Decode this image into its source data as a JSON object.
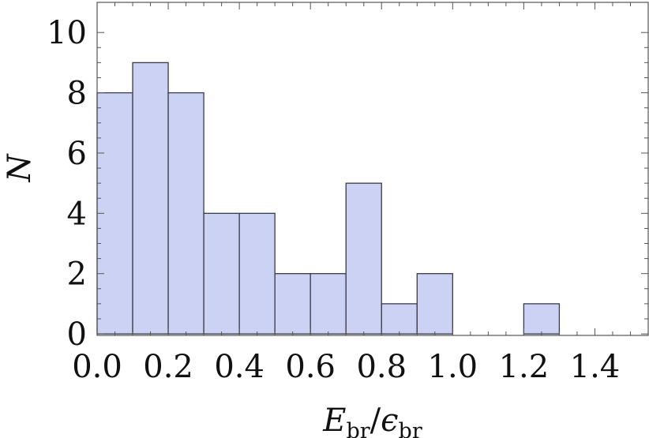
{
  "chart_data": {
    "type": "bar",
    "subtype": "histogram",
    "bin_edges": [
      0.0,
      0.1,
      0.2,
      0.3,
      0.4,
      0.5,
      0.6,
      0.7,
      0.8,
      0.9,
      1.0,
      1.1,
      1.2,
      1.3
    ],
    "counts": [
      8,
      9,
      8,
      4,
      4,
      2,
      2,
      5,
      1,
      2,
      0,
      0,
      1
    ],
    "xlim": [
      0.0,
      1.55
    ],
    "ylim": [
      -0.05,
      11
    ],
    "x_ticks": [
      0.0,
      0.2,
      0.4,
      0.6,
      0.8,
      1.0,
      1.2,
      1.4
    ],
    "x_tick_labels": [
      "0.0",
      "0.2",
      "0.4",
      "0.6",
      "0.8",
      "1.0",
      "1.2",
      "1.4"
    ],
    "y_ticks": [
      0,
      2,
      4,
      6,
      8,
      10
    ],
    "y_tick_labels": [
      "0",
      "2",
      "4",
      "6",
      "8",
      "10"
    ],
    "xlabel": {
      "main": "E",
      "main_sub": "br",
      "sep": "/",
      "den": "ϵ",
      "den_sub": "br"
    },
    "ylabel": "N",
    "bar_color": "#cbd2f4",
    "bar_edge_color": "#3a3a44",
    "frame_color": "#555555",
    "grid": false
  }
}
